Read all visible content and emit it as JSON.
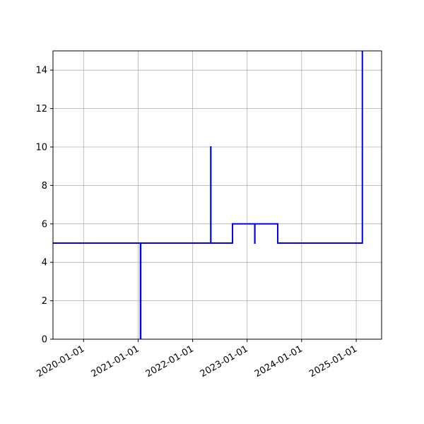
{
  "chart_data": {
    "type": "line",
    "title": "",
    "xlabel": "",
    "ylabel": "",
    "x_axis_type": "date",
    "xlim": [
      "2019-06-10",
      "2025-06-20"
    ],
    "ylim": [
      0,
      15
    ],
    "grid": true,
    "legend": "none",
    "line_color": "#0000ff",
    "step": true,
    "x_ticks": [
      "2020-01-01",
      "2021-01-01",
      "2022-01-01",
      "2023-01-01",
      "2024-01-01",
      "2025-01-01"
    ],
    "x_tick_labels": [
      "2020-01-01",
      "2021-01-01",
      "2022-01-01",
      "2023-01-01",
      "2024-01-01",
      "2025-01-01"
    ],
    "y_ticks": [
      0,
      2,
      4,
      6,
      8,
      10,
      12,
      14
    ],
    "y_tick_labels": [
      "0",
      "2",
      "4",
      "6",
      "8",
      "10",
      "12",
      "14"
    ],
    "series": [
      {
        "x": [
          "2019-06-10",
          "2021-01-15",
          "2021-01-16",
          "2021-01-17",
          "2021-01-18",
          "2022-05-01",
          "2022-05-02",
          "2022-05-03",
          "2022-09-25",
          "2023-02-20",
          "2023-02-21",
          "2023-02-22",
          "2023-07-25",
          "2025-02-10",
          "2025-02-11"
        ],
        "y": [
          5,
          5,
          0,
          0,
          5,
          5,
          10,
          5,
          6,
          6,
          5,
          6,
          5,
          5,
          15
        ]
      }
    ]
  }
}
